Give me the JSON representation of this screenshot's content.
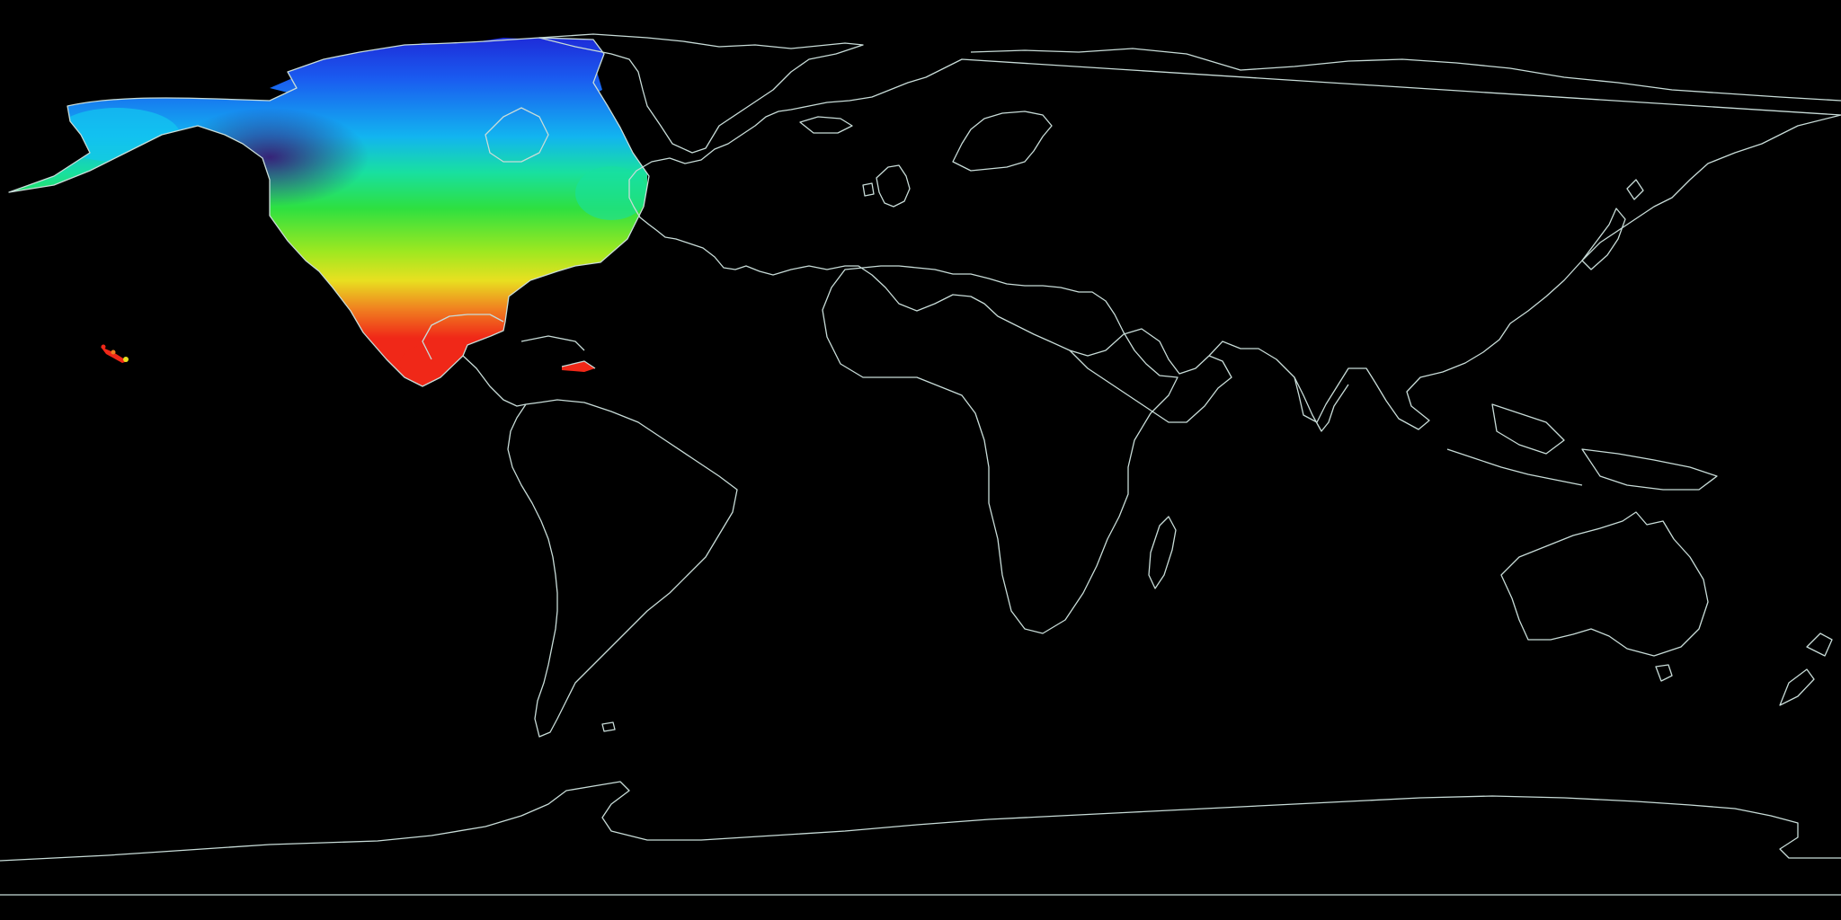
{
  "map": {
    "projection": "equirectangular",
    "background": "#000000",
    "coastline_color": "#c8dcd8",
    "data_region": "North America",
    "palette": [
      "#3a1070",
      "#1e2ad8",
      "#1a5cf0",
      "#12b4f0",
      "#18e0a0",
      "#2ee040",
      "#9ee820",
      "#e8e020",
      "#f08020",
      "#f02818"
    ]
  }
}
